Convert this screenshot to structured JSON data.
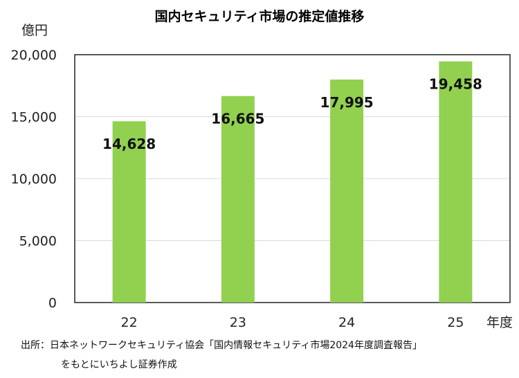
{
  "chart_data": {
    "type": "bar",
    "title": "国内セキュリティ市場の推定値推移",
    "ylabel": "億円",
    "xlabel": "年度",
    "categories": [
      "22",
      "23",
      "24",
      "25"
    ],
    "values": [
      14628,
      16665,
      17995,
      19458
    ],
    "data_labels": [
      "14,628",
      "16,665",
      "17,995",
      "19,458"
    ],
    "ylim": [
      0,
      20000
    ],
    "yticks": [
      0,
      5000,
      10000,
      15000,
      20000
    ],
    "ytick_labels": [
      "0",
      "5,000",
      "10,000",
      "15,000",
      "20,000"
    ],
    "grid": true,
    "bar_color": "#92D050"
  },
  "source": {
    "line1": "出所：日本ネットワークセキュリティ協会「国内情報セキュリティ市場2024年度調査報告」",
    "line2": "をもとにいちよし証券作成"
  }
}
